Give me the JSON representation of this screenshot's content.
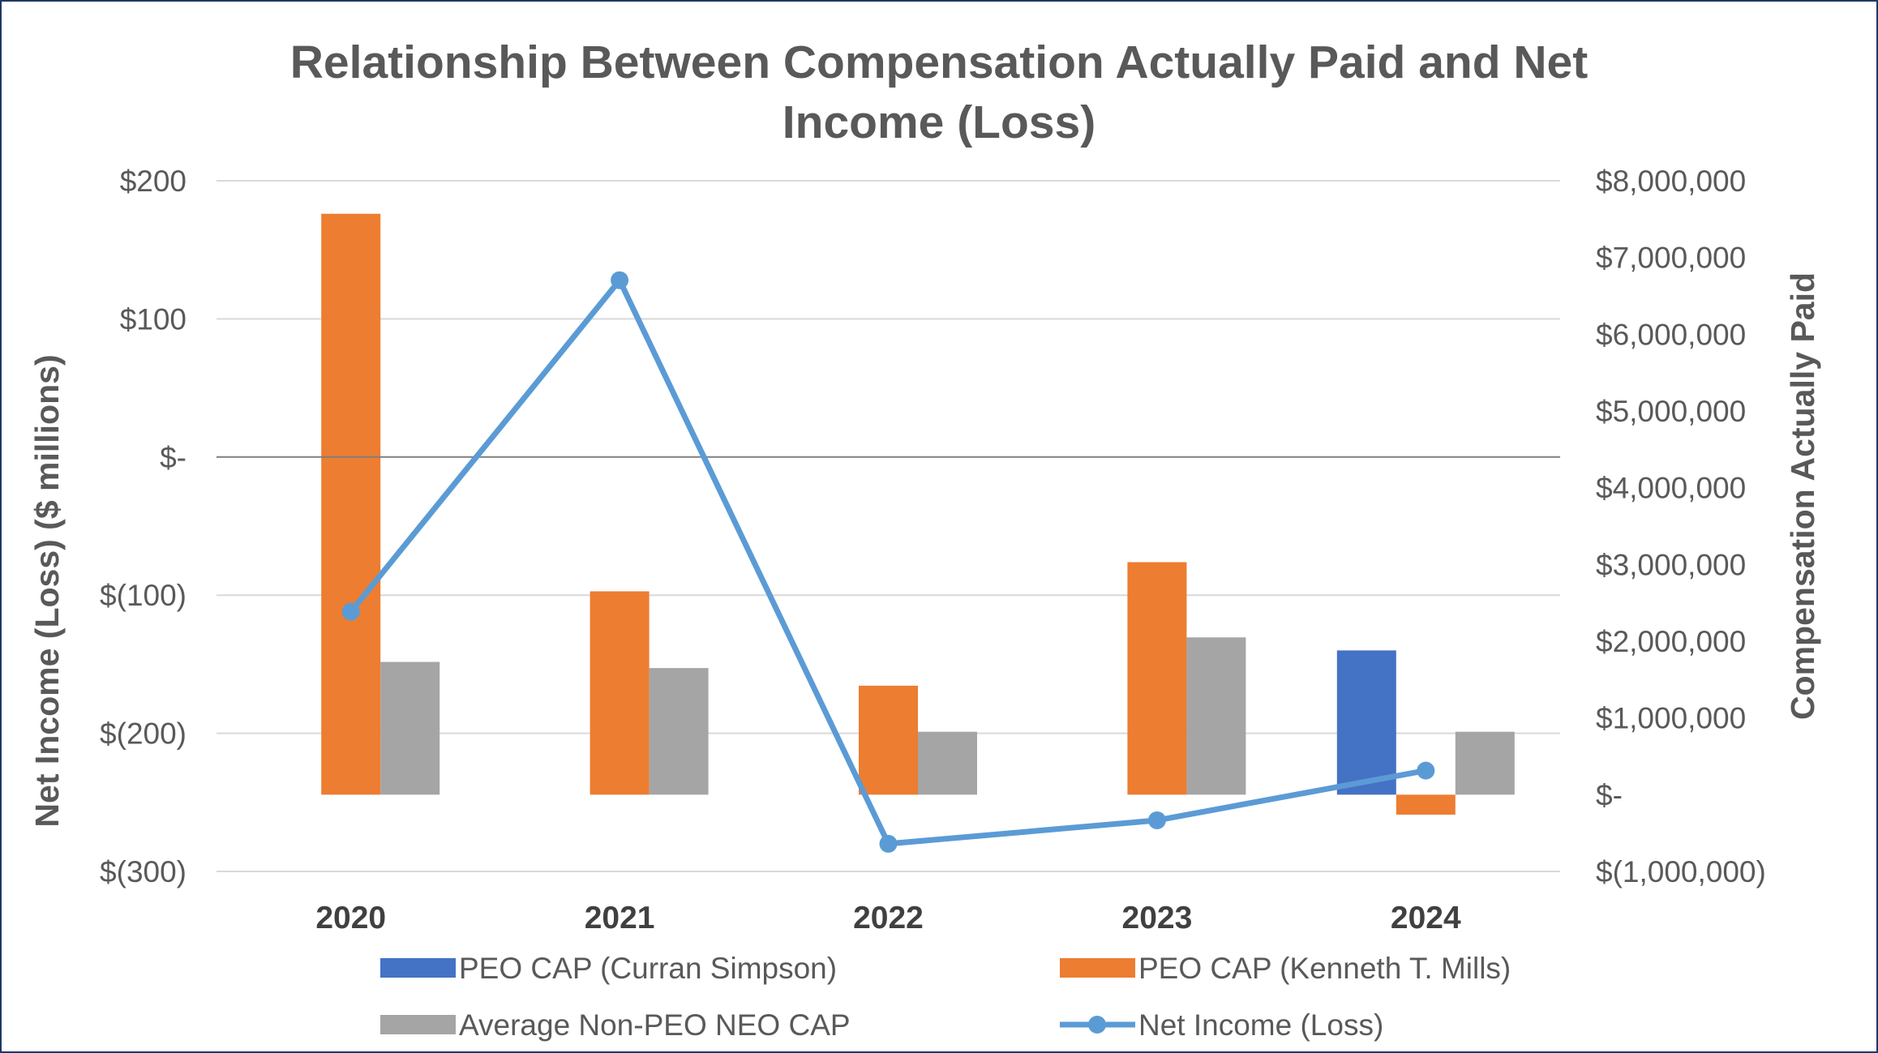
{
  "chart_data": {
    "type": "bar+line",
    "title": "Relationship Between Compensation Actually Paid and Net Income (Loss)",
    "title_lines": [
      "Relationship Between Compensation Actually Paid and Net",
      "Income (Loss)"
    ],
    "categories": [
      "2020",
      "2021",
      "2022",
      "2023",
      "2024"
    ],
    "left_axis": {
      "label": "Net Income (Loss) ($ millions)",
      "range": [
        -300,
        200
      ],
      "ticks": [
        200,
        100,
        0,
        -100,
        -200,
        -300
      ],
      "tick_labels": [
        "$200",
        "$100",
        "$-",
        "$(100)",
        "$(200)",
        "$(300)"
      ]
    },
    "right_axis": {
      "label": "Compensation Actually Paid",
      "range": [
        -1000000,
        8000000
      ],
      "ticks": [
        8000000,
        7000000,
        6000000,
        5000000,
        4000000,
        3000000,
        2000000,
        1000000,
        0,
        -1000000
      ],
      "tick_labels": [
        "$8,000,000",
        "$7,000,000",
        "$6,000,000",
        "$5,000,000",
        "$4,000,000",
        "$3,000,000",
        "$2,000,000",
        "$1,000,000",
        "$-",
        "$(1,000,000)"
      ]
    },
    "bar_series": [
      {
        "name": "PEO CAP (Curran Simpson)",
        "color": "#4472c4",
        "axis": "right",
        "values": [
          null,
          null,
          null,
          null,
          1880000
        ]
      },
      {
        "name": "PEO CAP (Kenneth T. Mills)",
        "color": "#ed7d31",
        "axis": "right",
        "values": [
          7570000,
          2650000,
          1420000,
          3030000,
          -260000
        ]
      },
      {
        "name": "Average Non-PEO NEO CAP",
        "color": "#a5a5a5",
        "axis": "right",
        "values": [
          1730000,
          1650000,
          820000,
          2050000,
          820000
        ]
      }
    ],
    "line_series": [
      {
        "name": "Net Income (Loss)",
        "color": "#5b9bd5",
        "axis": "left",
        "values": [
          -112,
          128,
          -280,
          -263,
          -227
        ]
      }
    ],
    "legend": [
      {
        "label": "PEO CAP (Curran Simpson)",
        "kind": "bar",
        "color": "#4472c4"
      },
      {
        "label": "PEO CAP (Kenneth T. Mills)",
        "kind": "bar",
        "color": "#ed7d31"
      },
      {
        "label": "Average Non-PEO NEO CAP",
        "kind": "bar",
        "color": "#a5a5a5"
      },
      {
        "label": "Net Income (Loss)",
        "kind": "line",
        "color": "#5b9bd5"
      }
    ],
    "legend_position": "bottom",
    "grid": true
  }
}
